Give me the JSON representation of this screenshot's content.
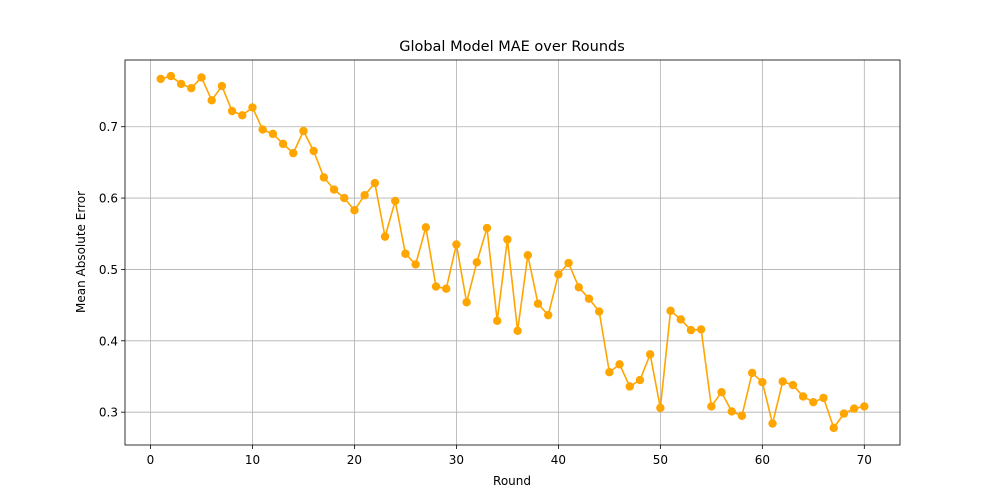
{
  "chart_data": {
    "type": "line",
    "title": "Global Model MAE over Rounds",
    "xlabel": "Round",
    "ylabel": "Mean Absolute Error",
    "xlim": [
      -2.5,
      73.5
    ],
    "ylim": [
      0.254,
      0.7935
    ],
    "xticks": [
      0,
      10,
      20,
      30,
      40,
      50,
      60,
      70
    ],
    "yticks": [
      0.3,
      0.4,
      0.5,
      0.6,
      0.7
    ],
    "ytick_labels": [
      "0.3",
      "0.4",
      "0.5",
      "0.6",
      "0.7"
    ],
    "grid": true,
    "series": [
      {
        "color": "#ffa500",
        "marker": "circle",
        "x": [
          1,
          2,
          3,
          4,
          5,
          6,
          7,
          8,
          9,
          10,
          11,
          12,
          13,
          14,
          15,
          16,
          17,
          18,
          19,
          20,
          21,
          22,
          23,
          24,
          25,
          26,
          27,
          28,
          29,
          30,
          31,
          32,
          33,
          34,
          35,
          36,
          37,
          38,
          39,
          40,
          41,
          42,
          43,
          44,
          45,
          46,
          47,
          48,
          49,
          50,
          51,
          52,
          53,
          54,
          55,
          56,
          57,
          58,
          59,
          60,
          61,
          62,
          63,
          64,
          65,
          66,
          67,
          68,
          69,
          70
        ],
        "y": [
          0.767,
          0.771,
          0.76,
          0.754,
          0.769,
          0.737,
          0.757,
          0.722,
          0.716,
          0.727,
          0.696,
          0.69,
          0.676,
          0.663,
          0.694,
          0.666,
          0.629,
          0.612,
          0.6,
          0.583,
          0.604,
          0.621,
          0.546,
          0.596,
          0.522,
          0.507,
          0.559,
          0.476,
          0.473,
          0.535,
          0.454,
          0.51,
          0.558,
          0.428,
          0.542,
          0.414,
          0.52,
          0.452,
          0.436,
          0.493,
          0.509,
          0.475,
          0.459,
          0.441,
          0.356,
          0.367,
          0.336,
          0.345,
          0.381,
          0.306,
          0.442,
          0.43,
          0.415,
          0.416,
          0.308,
          0.328,
          0.301,
          0.295,
          0.355,
          0.342,
          0.284,
          0.343,
          0.338,
          0.322,
          0.314,
          0.32,
          0.278,
          0.298,
          0.305,
          0.308
        ]
      }
    ]
  }
}
